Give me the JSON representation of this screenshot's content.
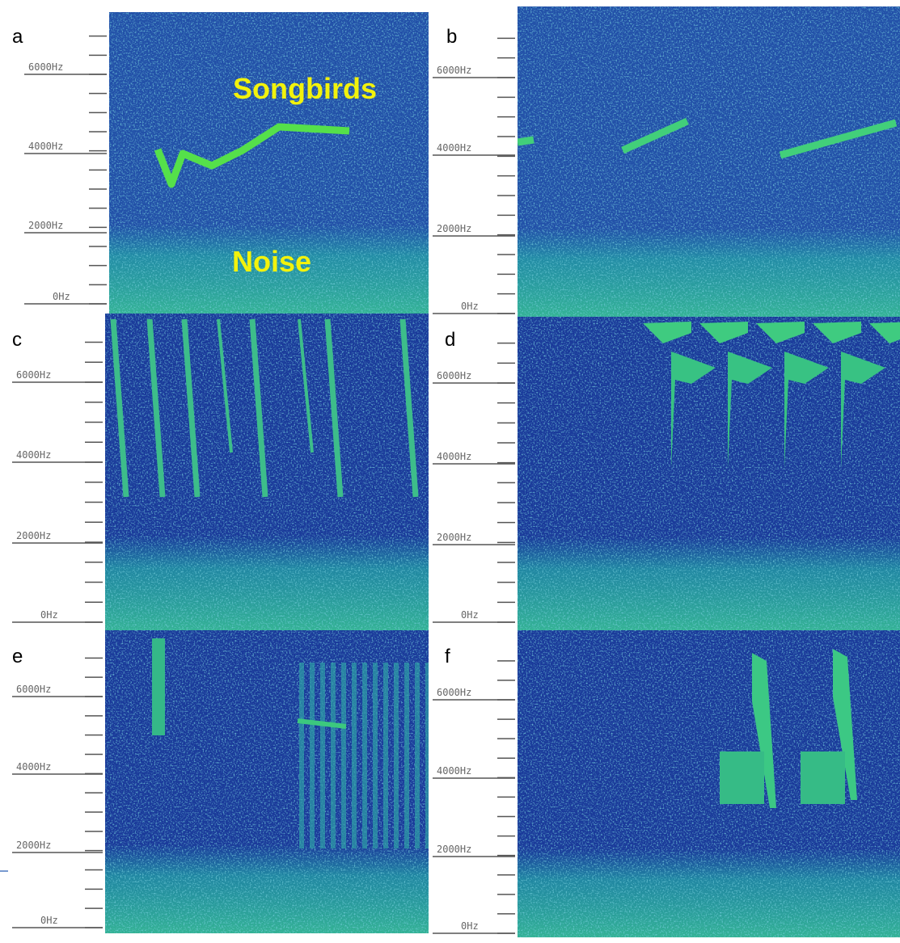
{
  "panels": [
    {
      "label": "a",
      "ticks": [
        "6000Hz",
        "4000Hz",
        "2000Hz",
        "0Hz"
      ],
      "annotations": [
        "Songbirds",
        "Noise"
      ]
    },
    {
      "label": "b",
      "ticks": [
        "6000Hz",
        "4000Hz",
        "2000Hz",
        "0Hz"
      ]
    },
    {
      "label": "c",
      "ticks": [
        "6000Hz",
        "4000Hz",
        "2000Hz",
        "0Hz"
      ]
    },
    {
      "label": "d",
      "ticks": [
        "6000Hz",
        "4000Hz",
        "2000Hz",
        "0Hz"
      ]
    },
    {
      "label": "e",
      "ticks": [
        "6000Hz",
        "4000Hz",
        "2000Hz",
        "0Hz"
      ]
    },
    {
      "label": "f",
      "ticks": [
        "6000Hz",
        "4000Hz",
        "2000Hz",
        "0Hz"
      ]
    }
  ]
}
